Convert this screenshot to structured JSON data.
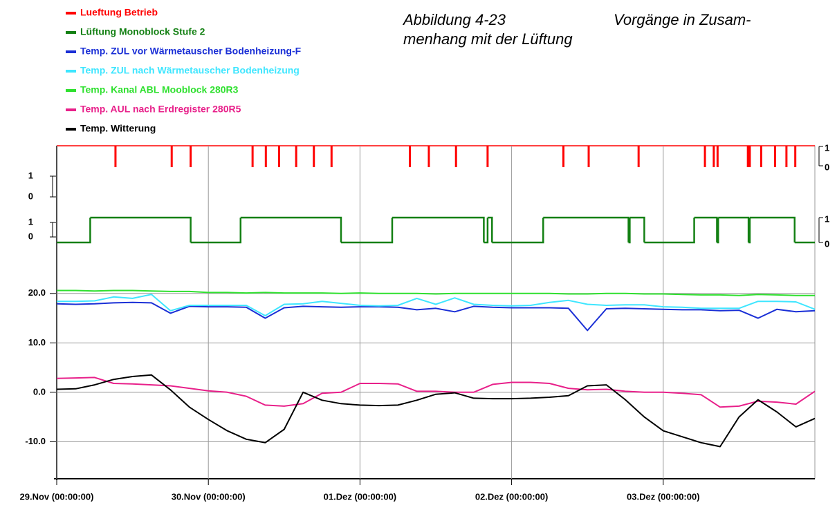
{
  "caption": {
    "number": "Abbildung 4-23",
    "lines": [
      "Vorgänge in Zusam-",
      "menhang mit der Lüftung"
    ]
  },
  "chart_data": [
    {
      "type": "event",
      "xlim": [
        0,
        120
      ],
      "ylim": [
        0,
        1
      ],
      "yticks": [
        0,
        1
      ],
      "y2lim": [
        0,
        1
      ],
      "y2ticks": [
        0,
        1
      ],
      "series": [
        {
          "name": "Lueftung Betrieb",
          "color": "#ff0000",
          "axis": "y2",
          "x": [
            9.3,
            18.2,
            21.2,
            31.0,
            33.1,
            35.2,
            37.9,
            40.7,
            43.5,
            55.9,
            58.9,
            63.2,
            68.2,
            80.2,
            84.2,
            92.1,
            102.6,
            104.0,
            104.6,
            109.4,
            109.7,
            111.5,
            113.7,
            115.5,
            116.9
          ],
          "values": [
            1,
            1,
            1,
            1,
            1,
            1,
            1,
            1,
            1,
            1,
            1,
            1,
            1,
            1,
            1,
            1,
            1,
            1,
            1,
            1,
            1,
            1,
            1,
            1,
            1
          ]
        }
      ]
    },
    {
      "type": "step",
      "xlim": [
        0,
        120
      ],
      "ylim": [
        0,
        1
      ],
      "yticks": [
        0,
        1
      ],
      "y2lim": [
        0,
        1
      ],
      "y2ticks": [
        0,
        1
      ],
      "series": [
        {
          "name": "Lüftung Monoblock Stufe 2",
          "color": "#138013",
          "axis": "y2",
          "x": [
            0,
            5.3,
            21.2,
            29.1,
            45.0,
            53.1,
            67.6,
            68.2,
            68.9,
            77.0,
            90.5,
            90.7,
            93.0,
            100.9,
            104.5,
            104.7,
            109.5,
            109.7,
            116.8,
            120
          ],
          "values": [
            0,
            1,
            0,
            1,
            0,
            1,
            0,
            1,
            0,
            1,
            0,
            1,
            0,
            1,
            0,
            1,
            0,
            1,
            0,
            0
          ]
        }
      ]
    },
    {
      "type": "line",
      "xlim": [
        0,
        120
      ],
      "ylim": [
        -17.5,
        28.5
      ],
      "grid": true,
      "xticks": [
        {
          "value": 0,
          "label": "29.Nov (00:00:00)"
        },
        {
          "value": 24,
          "label": "30.Nov (00:00:00)"
        },
        {
          "value": 48,
          "label": "01.Dez (00:00:00)"
        },
        {
          "value": 72,
          "label": "02.Dez (00:00:00)"
        },
        {
          "value": 96,
          "label": "03.Dez (00:00:00)"
        }
      ],
      "yticks": [
        {
          "value": -10,
          "label": "-10.0"
        },
        {
          "value": 0,
          "label": "0.0"
        },
        {
          "value": 10,
          "label": "10.0"
        },
        {
          "value": 20,
          "label": "20.0"
        }
      ],
      "x": [
        0,
        3,
        6,
        9,
        12,
        15,
        18,
        21,
        24,
        27,
        30,
        33,
        36,
        39,
        42,
        45,
        48,
        51,
        54,
        57,
        60,
        63,
        66,
        69,
        72,
        75,
        78,
        81,
        84,
        87,
        90,
        93,
        96,
        99,
        102,
        105,
        108,
        111,
        114,
        117,
        120
      ],
      "series": [
        {
          "name": "Temp. ZUL vor Wärmetauscher Bodenheizung-F",
          "color": "#1a2fd6",
          "values": [
            17.9,
            17.8,
            17.9,
            18.1,
            18.2,
            18.1,
            16.0,
            17.4,
            17.3,
            17.3,
            17.2,
            15.0,
            17.1,
            17.4,
            17.3,
            17.2,
            17.3,
            17.3,
            17.2,
            16.7,
            17.0,
            16.3,
            17.4,
            17.2,
            17.1,
            17.1,
            17.1,
            17.0,
            12.5,
            16.9,
            17.0,
            16.9,
            16.8,
            16.7,
            16.7,
            16.5,
            16.6,
            15.0,
            16.8,
            16.3,
            16.5
          ]
        },
        {
          "name": "Temp. ZUL nach Wärmetauscher Bodenheizung",
          "color": "#3ee6ff",
          "values": [
            18.4,
            18.4,
            18.5,
            19.3,
            19.0,
            19.8,
            16.5,
            17.6,
            17.6,
            17.6,
            17.6,
            15.5,
            17.8,
            17.9,
            18.4,
            18.0,
            17.6,
            17.5,
            17.6,
            19.0,
            17.8,
            19.1,
            17.8,
            17.6,
            17.5,
            17.6,
            18.2,
            18.6,
            17.8,
            17.6,
            17.7,
            17.7,
            17.3,
            17.2,
            17.0,
            17.0,
            17.0,
            18.4,
            18.4,
            18.3,
            16.8
          ]
        },
        {
          "name": "Temp. Kanal ABL Mooblock 280R3",
          "color": "#2ee02e",
          "values": [
            20.6,
            20.6,
            20.5,
            20.6,
            20.6,
            20.5,
            20.4,
            20.4,
            20.2,
            20.2,
            20.1,
            20.2,
            20.1,
            20.1,
            20.1,
            20.0,
            20.1,
            20.0,
            20.0,
            20.0,
            19.9,
            20.0,
            20.0,
            20.0,
            20.0,
            20.0,
            20.0,
            19.9,
            19.9,
            20.0,
            20.0,
            19.9,
            19.9,
            19.8,
            19.7,
            19.7,
            19.6,
            19.8,
            19.7,
            19.6,
            19.6
          ]
        },
        {
          "name": "Temp. AUL nach Erdregister 280R5",
          "color": "#e8208a",
          "values": [
            2.8,
            2.9,
            3.0,
            1.8,
            1.7,
            1.5,
            1.3,
            0.8,
            0.3,
            0.0,
            -0.8,
            -2.6,
            -2.8,
            -2.3,
            -0.2,
            0.0,
            1.8,
            1.8,
            1.7,
            0.2,
            0.2,
            0.0,
            0.0,
            1.6,
            2.0,
            2.0,
            1.8,
            0.8,
            0.5,
            0.6,
            0.2,
            0.0,
            0.0,
            -0.2,
            -0.5,
            -3.0,
            -2.8,
            -1.8,
            -2.0,
            -2.4,
            0.2
          ]
        },
        {
          "name": "Temp. Witterung",
          "color": "#000000",
          "values": [
            0.6,
            0.7,
            1.5,
            2.6,
            3.2,
            3.5,
            0.5,
            -3.0,
            -5.5,
            -7.8,
            -9.5,
            -10.2,
            -7.5,
            0.0,
            -1.6,
            -2.3,
            -2.6,
            -2.7,
            -2.6,
            -1.6,
            -0.4,
            -0.1,
            -1.2,
            -1.3,
            -1.3,
            -1.2,
            -1.0,
            -0.7,
            1.3,
            1.5,
            -1.5,
            -5.0,
            -7.8,
            -9.0,
            -10.2,
            -11.0,
            -5.0,
            -1.5,
            -4.0,
            -7.0,
            -5.3
          ]
        }
      ]
    }
  ]
}
